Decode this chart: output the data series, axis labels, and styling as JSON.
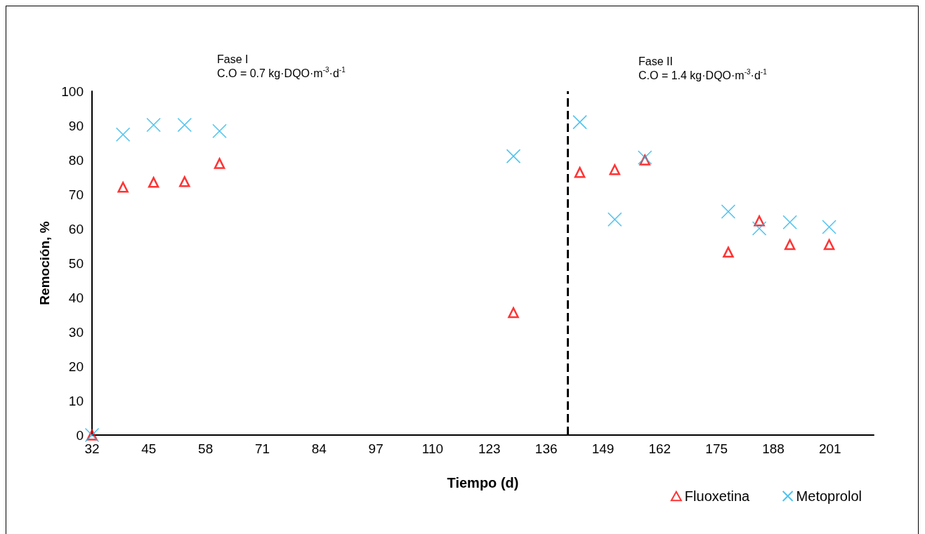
{
  "chart_data": {
    "type": "scatter",
    "xlabel": "Tiempo (d)",
    "ylabel": "Remoción, %",
    "xlim": [
      32,
      211
    ],
    "xticks": [
      32,
      45,
      58,
      71,
      84,
      97,
      110,
      123,
      136,
      149,
      162,
      175,
      188,
      201
    ],
    "ylim": [
      0,
      100
    ],
    "yticks": [
      0,
      10,
      20,
      30,
      40,
      50,
      60,
      70,
      80,
      90,
      100
    ],
    "grid": false,
    "legend": "bottom right",
    "annotations": [
      "Fase I\nC.O = 0.7 kg·DQO·m$^{-3}$·d$^{-1}$",
      "Fase II\nC.O = 1.4 kg·DQO·m$^{-3}$·d$^{-1}$"
    ],
    "ref_lines": [
      {
        "axis": "x",
        "value": 141,
        "label": null,
        "color": "#000000",
        "line_style": "dashed"
      }
    ],
    "series": [
      {
        "name": "Fluoxetina",
        "color": "#ff0000",
        "marker": "triangle",
        "x": [
          32,
          39.1,
          46.1,
          53.2,
          61.2,
          128.5,
          143.7,
          151.7,
          158.6,
          177.7,
          184.8,
          191.8,
          200.8
        ],
        "values": [
          0,
          72.1,
          73.5,
          73.7,
          79.0,
          35.6,
          76.4,
          77.2,
          80.0,
          53.2,
          62.3,
          55.4,
          55.4
        ]
      },
      {
        "name": "Metoprolol",
        "color": "#1fb4ee",
        "marker": "cross",
        "x": [
          32,
          39.1,
          46.1,
          53.2,
          61.2,
          128.5,
          143.7,
          151.7,
          158.6,
          177.7,
          184.8,
          191.8,
          200.8
        ],
        "values": [
          0,
          87.4,
          90.2,
          90.2,
          88.4,
          81.1,
          91.0,
          62.7,
          80.7,
          65.0,
          60.1,
          61.9,
          60.5
        ]
      }
    ]
  }
}
